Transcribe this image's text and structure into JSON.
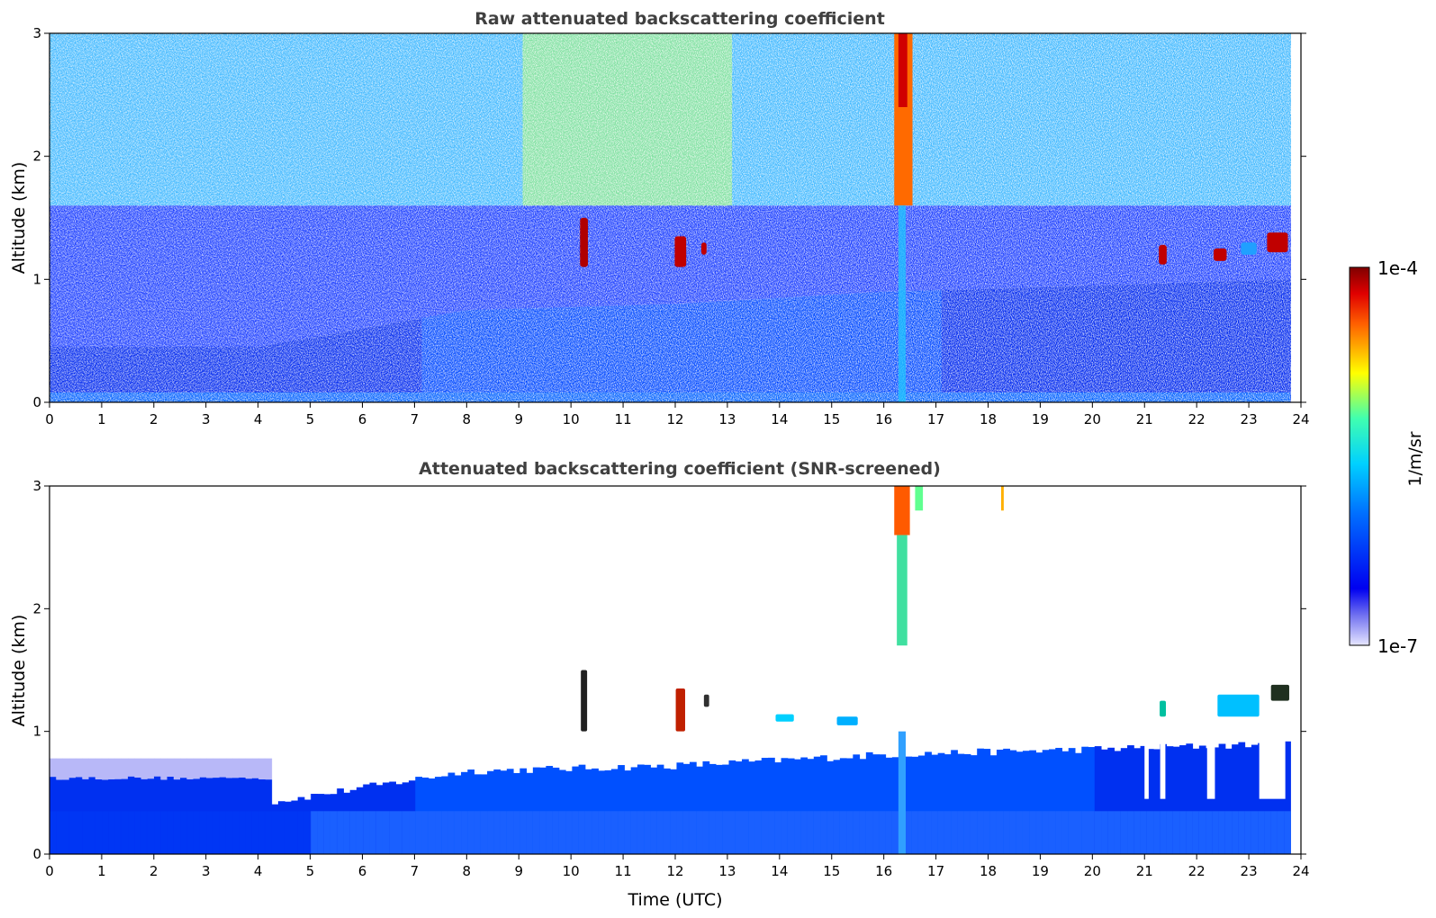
{
  "chart_data": [
    {
      "type": "heatmap",
      "title": "Raw attenuated backscattering coefficient",
      "xlabel": "",
      "ylabel": "Altitude (km)",
      "xlim": [
        0,
        24
      ],
      "ylim": [
        0,
        3
      ],
      "xticks": [
        "0",
        "1",
        "2",
        "3",
        "4",
        "5",
        "6",
        "7",
        "8",
        "9",
        "10",
        "11",
        "12",
        "13",
        "14",
        "15",
        "16",
        "17",
        "18",
        "19",
        "20",
        "21",
        "22",
        "23",
        "24"
      ],
      "yticks": [
        "0",
        "1",
        "2",
        "3"
      ],
      "description_values": {
        "boundary_layer_top_km": [
          [
            0,
            0.45
          ],
          [
            4,
            0.45
          ],
          [
            6,
            0.6
          ],
          [
            8,
            0.75
          ],
          [
            12,
            0.8
          ],
          [
            16,
            0.9
          ],
          [
            20,
            0.95
          ],
          [
            24,
            1.0
          ]
        ],
        "cloud_features": [
          {
            "t": 10.2,
            "z": 1.3
          },
          {
            "t": 12.1,
            "z": 1.25
          },
          {
            "t": 16.35,
            "z": 2.5
          },
          {
            "t": 21.3,
            "z": 1.2
          },
          {
            "t": 22.5,
            "z": 1.2
          },
          {
            "t": 23.6,
            "z": 1.3
          }
        ]
      }
    },
    {
      "type": "heatmap",
      "title": "Attenuated backscattering coefficient (SNR-screened)",
      "xlabel": "Time (UTC)",
      "ylabel": "Altitude (km)",
      "xlim": [
        0,
        24
      ],
      "ylim": [
        0,
        3
      ],
      "xticks": [
        "0",
        "1",
        "2",
        "3",
        "4",
        "5",
        "6",
        "7",
        "8",
        "9",
        "10",
        "11",
        "12",
        "13",
        "14",
        "15",
        "16",
        "17",
        "18",
        "19",
        "20",
        "21",
        "22",
        "23",
        "24"
      ],
      "yticks": [
        "0",
        "1",
        "2",
        "3"
      ]
    }
  ],
  "colorbar": {
    "label": "1/m/sr",
    "max_label": "1e-4",
    "min_label": "1e-7",
    "scale": "log"
  },
  "colors": {
    "jet_dark_blue": "#0000d0",
    "jet_blue": "#0040ff",
    "jet_cyan": "#00d0ff",
    "jet_yellow": "#ffff00",
    "jet_red": "#ff2000",
    "jet_dark_red": "#800000"
  }
}
